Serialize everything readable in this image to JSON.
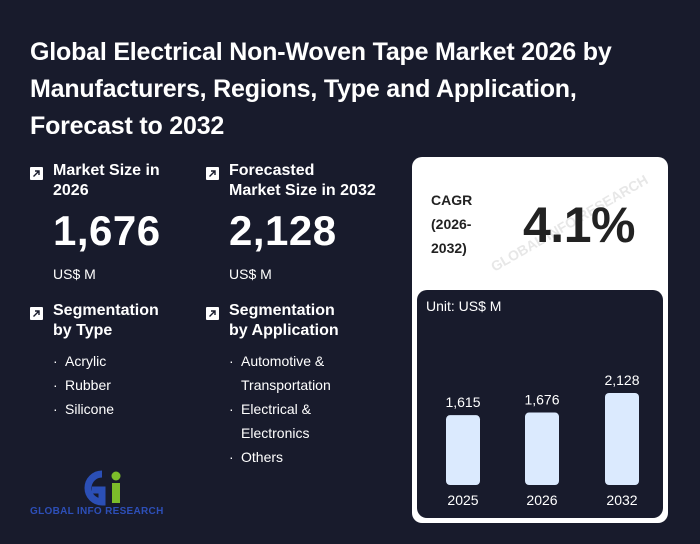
{
  "title": "Global Electrical Non-Woven Tape Market 2026 by Manufacturers, Regions, Type and Application, Forecast to 2032",
  "market_size": {
    "label_line1": "Market Size in",
    "label_line2": "2026",
    "value": "1,676",
    "unit": "US$ M"
  },
  "forecast_size": {
    "label_line1": "Forecasted",
    "label_line2": "Market Size in 2032",
    "value": "2,128",
    "unit": "US$ M"
  },
  "segmentation_type": {
    "label_line1": "Segmentation",
    "label_line2": "by Type",
    "items": [
      "Acrylic",
      "Rubber",
      "Silicone"
    ]
  },
  "segmentation_application": {
    "label_line1": "Segmentation",
    "label_line2": "by Application",
    "items": [
      "Automotive &",
      "Transportation",
      "Electrical &",
      "Electronics",
      "Others"
    ],
    "bullet_rows": [
      0,
      2,
      4
    ]
  },
  "cagr": {
    "label_line1": "CAGR",
    "label_line2": "(2026-",
    "label_line3": "2032)",
    "value": "4.1%"
  },
  "watermark_text": "GLOBAL INFO RESEARCH",
  "logo": {
    "text": "GLOBAL INFO RESEARCH",
    "colors": {
      "g": "#2b4fb6",
      "i": "#7cbd2a"
    }
  },
  "chart_data": {
    "type": "bar",
    "unit_label": "Unit: US$ M",
    "categories": [
      "2025",
      "2026",
      "2032"
    ],
    "values": [
      1615,
      1676,
      2128
    ],
    "value_labels": [
      "1,615",
      "1,676",
      "2,128"
    ],
    "bar_color": "#dbeafe"
  },
  "colors": {
    "background": "#181b2c",
    "card": "#ffffff",
    "bar": "#dbeafe"
  }
}
